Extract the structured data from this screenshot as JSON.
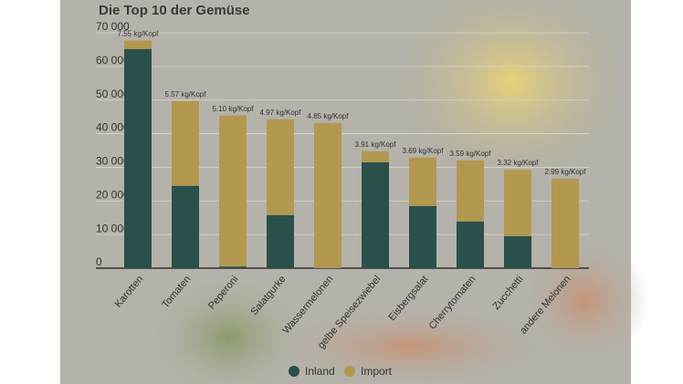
{
  "chart_data": {
    "type": "stacked_bar",
    "title": "Die Top 10 der Gemüse",
    "categories": [
      "Karotten",
      "Tomaten",
      "Peperoni",
      "Salatgurke",
      "Wassermelonen",
      "gelbe Speisezwiebel",
      "Eisbergsalat",
      "Cherrytomaten",
      "Zucchetti",
      "andere Melonen"
    ],
    "series": [
      {
        "name": "Inland",
        "color": "#29504a",
        "values": [
          65200,
          24500,
          500,
          15800,
          0,
          31500,
          18500,
          13900,
          9500,
          0
        ]
      },
      {
        "name": "Import",
        "color": "#b3984f",
        "values": [
          2500,
          25200,
          44900,
          28500,
          43200,
          3300,
          14400,
          18200,
          19800,
          26600
        ]
      }
    ],
    "annotations": [
      "7.55 kg/Kopf",
      "5.57 kg/Kopf",
      "5.10 kg/Kopf",
      "4.97 kg/Kopf",
      "4.85 kg/Kopf",
      "3.91 kg/Kopf",
      "3.69 kg/Kopf",
      "3.59 kg/Kopf",
      "3.32 kg/Kopf",
      "2.99 kg/Kopf"
    ],
    "ylim": [
      0,
      70000
    ],
    "yticks": [
      {
        "value": 0,
        "label": "0"
      },
      {
        "value": 10000,
        "label": "10 000"
      },
      {
        "value": 20000,
        "label": "20 000"
      },
      {
        "value": 30000,
        "label": "30 000"
      },
      {
        "value": 40000,
        "label": "40 000"
      },
      {
        "value": 50000,
        "label": "50 000"
      },
      {
        "value": 60000,
        "label": "60 000"
      },
      {
        "value": 70000,
        "label": "70 000"
      }
    ],
    "grid": true,
    "legend": "bottom"
  }
}
